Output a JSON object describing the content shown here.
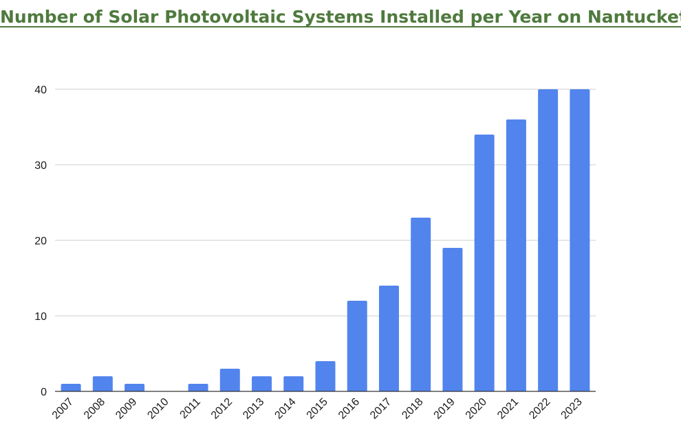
{
  "chart_data": {
    "type": "bar",
    "title": "Number of Solar Photovoltaic Systems Installed per Year on Nantucket",
    "xlabel": "",
    "ylabel": "",
    "categories": [
      "2007",
      "2008",
      "2009",
      "2010",
      "2011",
      "2012",
      "2013",
      "2014",
      "2015",
      "2016",
      "2017",
      "2018",
      "2019",
      "2020",
      "2021",
      "2022",
      "2023"
    ],
    "values": [
      1,
      2,
      1,
      0,
      1,
      3,
      2,
      2,
      4,
      12,
      14,
      23,
      19,
      34,
      36,
      40,
      40
    ],
    "ylim": [
      0,
      40
    ],
    "yticks": [
      "0",
      "10",
      "20",
      "30",
      "40"
    ],
    "grid": true,
    "legend": "none",
    "colors": {
      "bar": "#5284ed",
      "title": "#4f7a3e"
    }
  }
}
